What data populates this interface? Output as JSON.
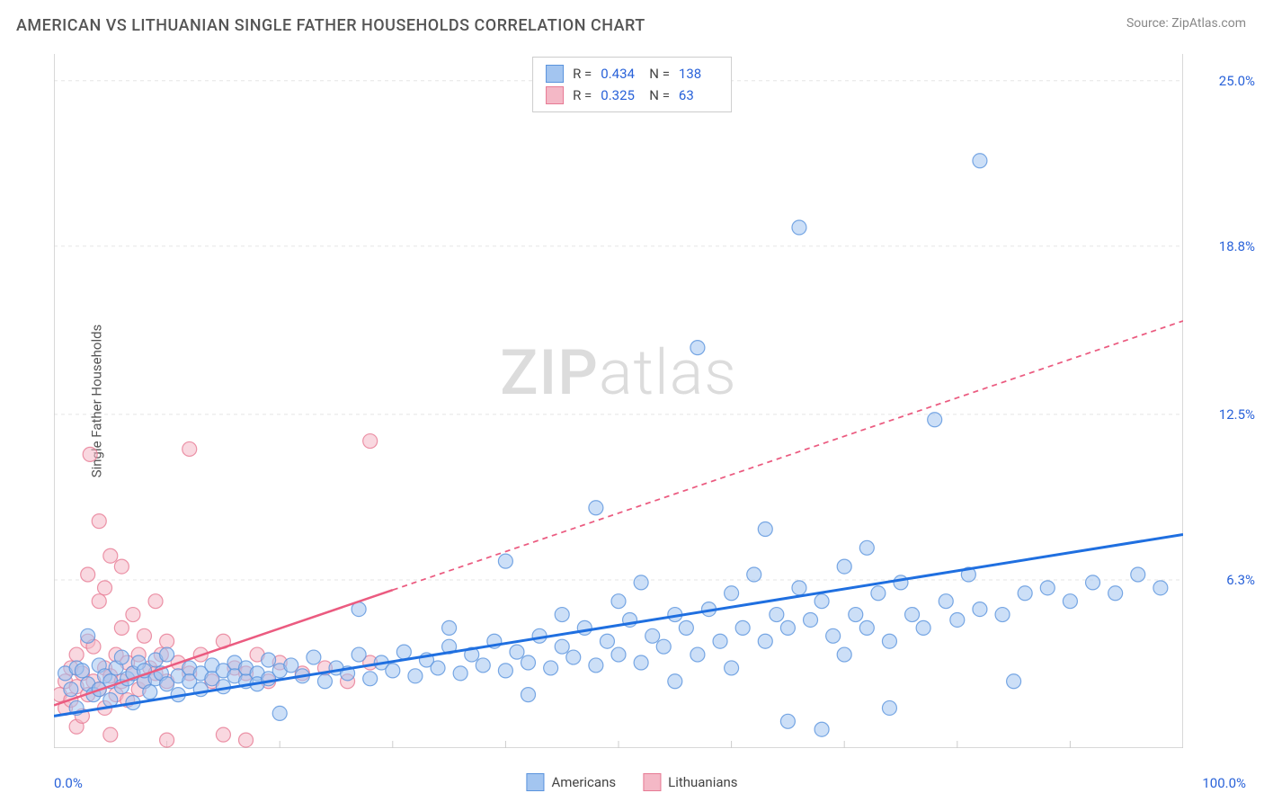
{
  "title": "AMERICAN VS LITHUANIAN SINGLE FATHER HOUSEHOLDS CORRELATION CHART",
  "source": "Source: ZipAtlas.com",
  "ylabel": "Single Father Households",
  "watermark_bold": "ZIP",
  "watermark_light": "atlas",
  "chart": {
    "type": "scatter",
    "xlim": [
      0,
      100
    ],
    "ylim": [
      0,
      26
    ],
    "x_tick_step": 10,
    "y_ticks": [
      6.3,
      12.5,
      18.8,
      25.0
    ],
    "y_tick_labels": [
      "6.3%",
      "12.5%",
      "18.8%",
      "25.0%"
    ],
    "x_min_label": "0.0%",
    "x_max_label": "100.0%",
    "background_color": "#ffffff",
    "grid_color": "#e5e5e5",
    "axis_color": "#cccccc",
    "marker_radius": 8,
    "marker_opacity": 0.55,
    "series": [
      {
        "name": "Americans",
        "fill_color": "#a3c5f0",
        "stroke_color": "#5a93dd",
        "trend_color": "#1f6fe0",
        "trend_width": 3,
        "trend_dash_after_x": 100,
        "R": "0.434",
        "N": "138",
        "trend_start": [
          0,
          1.2
        ],
        "trend_end": [
          100,
          8.0
        ],
        "points": [
          [
            1,
            2.8
          ],
          [
            1.5,
            2.2
          ],
          [
            2,
            3.0
          ],
          [
            2,
            1.5
          ],
          [
            2.5,
            2.9
          ],
          [
            3,
            2.4
          ],
          [
            3,
            4.2
          ],
          [
            3.5,
            2.0
          ],
          [
            4,
            3.1
          ],
          [
            4,
            2.2
          ],
          [
            4.5,
            2.7
          ],
          [
            5,
            2.5
          ],
          [
            5,
            1.8
          ],
          [
            5.5,
            3.0
          ],
          [
            6,
            2.3
          ],
          [
            6,
            3.4
          ],
          [
            6.5,
            2.6
          ],
          [
            7,
            2.8
          ],
          [
            7,
            1.7
          ],
          [
            7.5,
            3.2
          ],
          [
            8,
            2.5
          ],
          [
            8,
            2.9
          ],
          [
            8.5,
            2.1
          ],
          [
            9,
            3.3
          ],
          [
            9,
            2.6
          ],
          [
            9.5,
            2.8
          ],
          [
            10,
            2.4
          ],
          [
            10,
            3.5
          ],
          [
            11,
            2.7
          ],
          [
            11,
            2.0
          ],
          [
            12,
            3.0
          ],
          [
            12,
            2.5
          ],
          [
            13,
            2.8
          ],
          [
            13,
            2.2
          ],
          [
            14,
            3.1
          ],
          [
            14,
            2.6
          ],
          [
            15,
            2.9
          ],
          [
            15,
            2.3
          ],
          [
            16,
            3.2
          ],
          [
            16,
            2.7
          ],
          [
            17,
            2.5
          ],
          [
            17,
            3.0
          ],
          [
            18,
            2.8
          ],
          [
            18,
            2.4
          ],
          [
            19,
            3.3
          ],
          [
            19,
            2.6
          ],
          [
            20,
            2.9
          ],
          [
            20,
            1.3
          ],
          [
            21,
            3.1
          ],
          [
            22,
            2.7
          ],
          [
            23,
            3.4
          ],
          [
            24,
            2.5
          ],
          [
            25,
            3.0
          ],
          [
            26,
            2.8
          ],
          [
            27,
            3.5
          ],
          [
            27,
            5.2
          ],
          [
            28,
            2.6
          ],
          [
            29,
            3.2
          ],
          [
            30,
            2.9
          ],
          [
            31,
            3.6
          ],
          [
            32,
            2.7
          ],
          [
            33,
            3.3
          ],
          [
            34,
            3.0
          ],
          [
            35,
            3.8
          ],
          [
            35,
            4.5
          ],
          [
            36,
            2.8
          ],
          [
            37,
            3.5
          ],
          [
            38,
            3.1
          ],
          [
            39,
            4.0
          ],
          [
            40,
            2.9
          ],
          [
            40,
            7.0
          ],
          [
            41,
            3.6
          ],
          [
            42,
            3.2
          ],
          [
            42,
            2.0
          ],
          [
            43,
            4.2
          ],
          [
            44,
            3.0
          ],
          [
            45,
            3.8
          ],
          [
            45,
            5.0
          ],
          [
            46,
            3.4
          ],
          [
            47,
            4.5
          ],
          [
            48,
            3.1
          ],
          [
            48,
            9.0
          ],
          [
            49,
            4.0
          ],
          [
            50,
            3.5
          ],
          [
            50,
            5.5
          ],
          [
            51,
            4.8
          ],
          [
            52,
            3.2
          ],
          [
            52,
            6.2
          ],
          [
            53,
            4.2
          ],
          [
            54,
            3.8
          ],
          [
            55,
            5.0
          ],
          [
            55,
            2.5
          ],
          [
            56,
            4.5
          ],
          [
            57,
            3.5
          ],
          [
            57,
            15.0
          ],
          [
            58,
            5.2
          ],
          [
            59,
            4.0
          ],
          [
            60,
            5.8
          ],
          [
            60,
            3.0
          ],
          [
            61,
            4.5
          ],
          [
            62,
            6.5
          ],
          [
            63,
            4.0
          ],
          [
            63,
            8.2
          ],
          [
            64,
            5.0
          ],
          [
            65,
            4.5
          ],
          [
            65,
            1.0
          ],
          [
            66,
            6.0
          ],
          [
            66,
            19.5
          ],
          [
            67,
            4.8
          ],
          [
            68,
            5.5
          ],
          [
            68,
            0.7
          ],
          [
            69,
            4.2
          ],
          [
            70,
            6.8
          ],
          [
            70,
            3.5
          ],
          [
            71,
            5.0
          ],
          [
            72,
            4.5
          ],
          [
            72,
            7.5
          ],
          [
            73,
            5.8
          ],
          [
            74,
            4.0
          ],
          [
            74,
            1.5
          ],
          [
            75,
            6.2
          ],
          [
            76,
            5.0
          ],
          [
            77,
            4.5
          ],
          [
            78,
            12.3
          ],
          [
            79,
            5.5
          ],
          [
            80,
            4.8
          ],
          [
            81,
            6.5
          ],
          [
            82,
            5.2
          ],
          [
            82,
            22.0
          ],
          [
            84,
            5.0
          ],
          [
            85,
            2.5
          ],
          [
            86,
            5.8
          ],
          [
            88,
            6.0
          ],
          [
            90,
            5.5
          ],
          [
            92,
            6.2
          ],
          [
            94,
            5.8
          ],
          [
            96,
            6.5
          ],
          [
            98,
            6.0
          ]
        ]
      },
      {
        "name": "Lithuanians",
        "fill_color": "#f4b8c6",
        "stroke_color": "#e77a94",
        "trend_color": "#eb5b80",
        "trend_width": 2.5,
        "trend_dash_after_x": 30,
        "R": "0.325",
        "N": "63",
        "trend_start": [
          0,
          1.6
        ],
        "trend_end": [
          100,
          16.0
        ],
        "points": [
          [
            0.5,
            2.0
          ],
          [
            1,
            2.5
          ],
          [
            1,
            1.5
          ],
          [
            1.5,
            3.0
          ],
          [
            1.5,
            1.8
          ],
          [
            2,
            2.3
          ],
          [
            2,
            3.5
          ],
          [
            2,
            0.8
          ],
          [
            2.5,
            2.8
          ],
          [
            2.5,
            1.2
          ],
          [
            3,
            4.0
          ],
          [
            3,
            2.0
          ],
          [
            3,
            6.5
          ],
          [
            3.2,
            11.0
          ],
          [
            3.5,
            2.5
          ],
          [
            3.5,
            3.8
          ],
          [
            4,
            2.2
          ],
          [
            4,
            5.5
          ],
          [
            4,
            8.5
          ],
          [
            4.5,
            3.0
          ],
          [
            4.5,
            1.5
          ],
          [
            4.5,
            6.0
          ],
          [
            5,
            2.7
          ],
          [
            5,
            7.2
          ],
          [
            5,
            0.5
          ],
          [
            5.5,
            3.5
          ],
          [
            5.5,
            2.0
          ],
          [
            6,
            4.5
          ],
          [
            6,
            2.5
          ],
          [
            6,
            6.8
          ],
          [
            6.5,
            3.2
          ],
          [
            6.5,
            1.8
          ],
          [
            7,
            2.8
          ],
          [
            7,
            5.0
          ],
          [
            7.5,
            3.5
          ],
          [
            7.5,
            2.2
          ],
          [
            8,
            4.2
          ],
          [
            8,
            2.5
          ],
          [
            8.5,
            3.0
          ],
          [
            9,
            2.8
          ],
          [
            9,
            5.5
          ],
          [
            9.5,
            3.5
          ],
          [
            10,
            2.5
          ],
          [
            10,
            4.0
          ],
          [
            10,
            0.3
          ],
          [
            11,
            3.2
          ],
          [
            12,
            2.8
          ],
          [
            12,
            11.2
          ],
          [
            13,
            3.5
          ],
          [
            14,
            2.5
          ],
          [
            15,
            4.0
          ],
          [
            15,
            0.5
          ],
          [
            16,
            3.0
          ],
          [
            17,
            2.8
          ],
          [
            17,
            0.3
          ],
          [
            18,
            3.5
          ],
          [
            19,
            2.5
          ],
          [
            20,
            3.2
          ],
          [
            22,
            2.8
          ],
          [
            24,
            3.0
          ],
          [
            26,
            2.5
          ],
          [
            28,
            3.2
          ],
          [
            28,
            11.5
          ]
        ]
      }
    ]
  },
  "legend": {
    "americans_label": "Americans",
    "lithuanians_label": "Lithuanians"
  },
  "stat_legend": {
    "r_label": "R =",
    "n_label": "N ="
  }
}
